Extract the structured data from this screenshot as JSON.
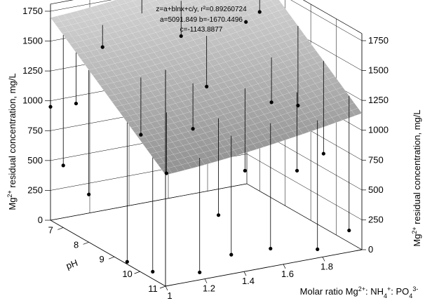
{
  "chart_data": {
    "type": "surface3d",
    "equation": {
      "line1": "z=a+blnx+c/y, r²=0.89260724",
      "line2": "a=5091.849 b=-1670.4496",
      "line3": "c=-1143.8877"
    },
    "coefficients": {
      "a": 5091.849,
      "b": -1670.4496,
      "c": -1143.8877,
      "r2": 0.89260724
    },
    "axes": {
      "x": {
        "label": "Molar ratio Mg2+: NH4+: PO43-",
        "label_parts": [
          {
            "t": "Molar ratio Mg"
          },
          {
            "t": "2+",
            "s": "sup"
          },
          {
            "t": ": NH"
          },
          {
            "t": "4",
            "s": "sub"
          },
          {
            "t": "+",
            "s": "sup"
          },
          {
            "t": ": PO"
          },
          {
            "t": "4",
            "s": "sub"
          },
          {
            "t": "3-",
            "s": "sup"
          }
        ],
        "range": [
          1.0,
          2.0
        ],
        "ticks": [
          1,
          1.2,
          1.4,
          1.6,
          1.8
        ],
        "tick_labels": [
          "1",
          "1.2",
          "1.4",
          "1.6",
          "1.8"
        ]
      },
      "y": {
        "label": "pH",
        "range": [
          6.5,
          11.0
        ],
        "ticks": [
          7,
          8,
          9,
          10,
          11
        ],
        "tick_labels": [
          "7",
          "8",
          "9",
          "10",
          "11"
        ]
      },
      "z": {
        "label": "Mg2+ residual concentration, mg/L",
        "label_parts": [
          {
            "t": "Mg"
          },
          {
            "t": "2+",
            "s": "sup"
          },
          {
            "t": " residual concentration, mg/L"
          }
        ],
        "range": [
          0,
          1750
        ],
        "ticks": [
          0,
          250,
          500,
          750,
          1000,
          1250,
          1500,
          1750
        ],
        "tick_labels_left": [
          "0",
          "250",
          "500",
          "750",
          "1000",
          "1250",
          "1500",
          "1750"
        ],
        "tick_labels_right": [
          "0",
          "250",
          "500",
          "750",
          "1000",
          "1250",
          "1500",
          "1750"
        ]
      }
    },
    "points": [
      {
        "x": 1.0,
        "y": 6.5,
        "z": 950
      },
      {
        "x": 1.0,
        "y": 7.0,
        "z": 520
      },
      {
        "x": 1.0,
        "y": 8.0,
        "z": 400
      },
      {
        "x": 1.0,
        "y": 7.5,
        "z": 1100
      },
      {
        "x": 1.0,
        "y": 9.5,
        "z": 20
      },
      {
        "x": 1.0,
        "y": 10.5,
        "z": 60
      },
      {
        "x": 1.2,
        "y": 7.0,
        "z": 1450
      },
      {
        "x": 1.2,
        "y": 8.5,
        "z": 900
      },
      {
        "x": 1.2,
        "y": 9.5,
        "z": 700
      },
      {
        "x": 1.2,
        "y": 10.8,
        "z": 30
      },
      {
        "x": 1.4,
        "y": 7.0,
        "z": 1850
      },
      {
        "x": 1.4,
        "y": 9.0,
        "z": 950
      },
      {
        "x": 1.4,
        "y": 10.0,
        "z": 350
      },
      {
        "x": 1.4,
        "y": 10.5,
        "z": 80
      },
      {
        "x": 1.6,
        "y": 7.0,
        "z": 1420
      },
      {
        "x": 1.6,
        "y": 8.0,
        "z": 1120
      },
      {
        "x": 1.6,
        "y": 9.5,
        "z": 600
      },
      {
        "x": 1.6,
        "y": 10.5,
        "z": 70
      },
      {
        "x": 1.8,
        "y": 7.0,
        "z": 1900
      },
      {
        "x": 1.8,
        "y": 8.0,
        "z": 1600
      },
      {
        "x": 1.8,
        "y": 9.0,
        "z": 1050
      },
      {
        "x": 1.8,
        "y": 10.0,
        "z": 600
      },
      {
        "x": 1.8,
        "y": 10.8,
        "z": 40
      },
      {
        "x": 2.0,
        "y": 7.0,
        "z": 1500
      },
      {
        "x": 2.0,
        "y": 8.5,
        "z": 900
      },
      {
        "x": 2.0,
        "y": 9.5,
        "z": 620
      },
      {
        "x": 2.0,
        "y": 10.5,
        "z": 100
      }
    ],
    "surface_color": "#b8b8b8",
    "grid": true
  }
}
